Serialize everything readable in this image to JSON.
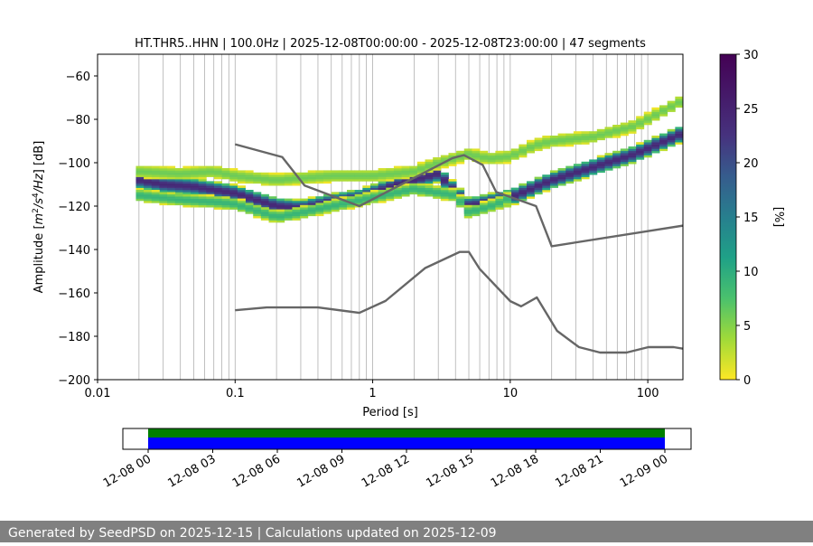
{
  "chart_data": {
    "type": "heatmap",
    "title": "HT.THR5..HHN | 100.0Hz | 2025-12-08T00:00:00 - 2025-12-08T23:00:00 | 47 segments",
    "xlabel": "Period [s]",
    "ylabel": "Amplitude [m²/s⁴/Hz] [dB]",
    "x_scale": "log",
    "xlim": [
      0.01,
      180
    ],
    "ylim": [
      -200,
      -50
    ],
    "x_ticks": [
      0.01,
      0.1,
      1,
      10,
      100
    ],
    "x_tick_labels": [
      "0.01",
      "0.1",
      "1",
      "10",
      "100"
    ],
    "y_ticks": [
      -200,
      -180,
      -160,
      -140,
      -120,
      -100,
      -80,
      -60
    ],
    "y_tick_labels": [
      "−200",
      "−180",
      "−160",
      "−140",
      "−120",
      "−100",
      "−80",
      "−60"
    ],
    "grid": "vertical period lines",
    "colorbar": {
      "label": "[%]",
      "range": [
        0,
        30
      ],
      "ticks": [
        0,
        5,
        10,
        15,
        20,
        25,
        30
      ],
      "colormap": "viridis_r"
    },
    "ppsd_ridges": [
      {
        "name": "central",
        "level": 24,
        "width": 7,
        "points": [
          [
            0.02,
            -108
          ],
          [
            0.03,
            -110
          ],
          [
            0.05,
            -111
          ],
          [
            0.1,
            -114
          ],
          [
            0.2,
            -120
          ],
          [
            0.3,
            -121
          ],
          [
            0.5,
            -118
          ],
          [
            0.8,
            -116
          ],
          [
            1.5,
            -110
          ],
          [
            3,
            -105
          ],
          [
            5,
            -120
          ],
          [
            7,
            -118
          ],
          [
            10,
            -116
          ],
          [
            20,
            -108
          ],
          [
            40,
            -102
          ],
          [
            80,
            -96
          ],
          [
            170,
            -87
          ]
        ]
      },
      {
        "name": "lower",
        "level": 9,
        "width": 5,
        "points": [
          [
            0.02,
            -115
          ],
          [
            0.04,
            -117
          ],
          [
            0.07,
            -118
          ],
          [
            0.1,
            -119
          ],
          [
            0.2,
            -125
          ],
          [
            0.3,
            -123
          ],
          [
            0.5,
            -120
          ],
          [
            1,
            -116
          ],
          [
            2,
            -112
          ],
          [
            4,
            -115
          ],
          [
            5,
            -123
          ],
          [
            8,
            -119
          ],
          [
            10,
            -116
          ]
        ]
      },
      {
        "name": "upper",
        "level": 6,
        "width": 5,
        "points": [
          [
            0.02,
            -104
          ],
          [
            0.04,
            -105
          ],
          [
            0.07,
            -104
          ],
          [
            0.1,
            -106
          ],
          [
            0.2,
            -108
          ],
          [
            0.3,
            -107
          ],
          [
            0.5,
            -106
          ],
          [
            1,
            -106
          ],
          [
            2,
            -104
          ],
          [
            3,
            -100
          ],
          [
            5,
            -96
          ],
          [
            7,
            -98
          ],
          [
            10,
            -97
          ],
          [
            15,
            -92
          ],
          [
            20,
            -90
          ],
          [
            40,
            -88
          ],
          [
            80,
            -83
          ],
          [
            170,
            -72
          ]
        ]
      }
    ],
    "noise_models": [
      {
        "name": "NHNM",
        "color": "#666666",
        "points": [
          [
            0.1,
            -91.5
          ],
          [
            0.22,
            -97.4
          ],
          [
            0.32,
            -110.5
          ],
          [
            0.8,
            -120
          ],
          [
            3.8,
            -97.9
          ],
          [
            4.6,
            -96.5
          ],
          [
            6.3,
            -101
          ],
          [
            7.9,
            -113.5
          ],
          [
            15.4,
            -120
          ],
          [
            20,
            -138.5
          ],
          [
            180,
            -129
          ]
        ]
      },
      {
        "name": "NLNM",
        "color": "#666666",
        "points": [
          [
            0.1,
            -168
          ],
          [
            0.17,
            -166.7
          ],
          [
            0.4,
            -166.7
          ],
          [
            0.8,
            -169.2
          ],
          [
            1.24,
            -163.7
          ],
          [
            2.4,
            -148.6
          ],
          [
            4.3,
            -141.1
          ],
          [
            5,
            -141.1
          ],
          [
            6,
            -149
          ],
          [
            10,
            -163.8
          ],
          [
            12,
            -166.2
          ],
          [
            15.6,
            -162.1
          ],
          [
            21.9,
            -177.5
          ],
          [
            31.6,
            -185
          ],
          [
            45,
            -187.5
          ],
          [
            70,
            -187.5
          ],
          [
            101,
            -185
          ],
          [
            154,
            -185
          ],
          [
            180,
            -185.7
          ]
        ]
      }
    ],
    "availability": {
      "x_range": [
        "12-08 00",
        "12-09 00"
      ],
      "x_tick_labels": [
        "12-08 00",
        "12-08 03",
        "12-08 06",
        "12-08 09",
        "12-08 12",
        "12-08 15",
        "12-08 18",
        "12-08 21",
        "12-09 00"
      ],
      "bars": [
        {
          "name": "processed",
          "color": "#007f00",
          "start_h": 0,
          "end_h": 24
        },
        {
          "name": "data",
          "color": "#0000ff",
          "start_h": 0,
          "end_h": 24
        }
      ]
    }
  },
  "footer": "Generated by SeedPSD on 2025-12-15 | Calculations updated on 2025-12-09"
}
